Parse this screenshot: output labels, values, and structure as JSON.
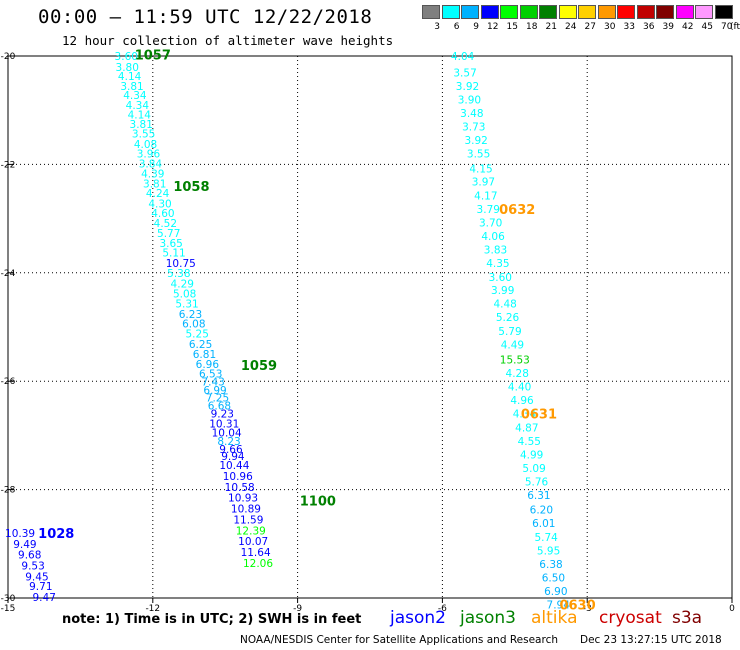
{
  "header": {
    "title": "00:00 – 11:59 UTC 12/22/2018",
    "subtitle": "12 hour collection of altimeter wave heights"
  },
  "scale": {
    "labels": [
      "3",
      "6",
      "9",
      "12",
      "15",
      "18",
      "21",
      "24",
      "27",
      "30",
      "33",
      "36",
      "39",
      "42",
      "45",
      "70"
    ],
    "colors": [
      "#7f7f7f",
      "#00ffff",
      "#00b2ff",
      "#0000ff",
      "#00ff00",
      "#00d000",
      "#008000",
      "#ffff00",
      "#ffd000",
      "#ff9900",
      "#ff0000",
      "#c00000",
      "#800000",
      "#ff00ff",
      "#ff99ff",
      "#000000"
    ],
    "unit": "(ft)"
  },
  "footer": {
    "note": "note:  1) Time is in UTC;  2) SWH is in feet",
    "missions": [
      {
        "name": "jason2",
        "color": "#0000ff"
      },
      {
        "name": "jason3",
        "color": "#008000"
      },
      {
        "name": "altika",
        "color": "#ff9900"
      },
      {
        "name": "cryosat",
        "color": "#cc0000"
      },
      {
        "name": "s3a",
        "color": "#800000"
      }
    ],
    "credit": "NOAA/NESDIS Center for Satellite Applications and Research",
    "timestamp": "Dec 23 13:27:15 UTC 2018"
  },
  "chart_data": {
    "type": "scatter",
    "title": "00:00 – 11:59 UTC 12/22/2018",
    "subtitle": "12 hour collection of altimeter wave heights",
    "xlim": [
      -15,
      0
    ],
    "ylim": [
      -30,
      -20
    ],
    "x_ticks": [
      -15,
      -12,
      -9,
      -6,
      -3,
      0
    ],
    "y_ticks": [
      -20,
      -22,
      -24,
      -26,
      -28,
      -30
    ],
    "grid": true,
    "color_scale": {
      "unit": "ft",
      "thresholds": [
        3,
        6,
        9,
        12,
        15,
        18,
        21,
        24,
        27,
        30,
        33,
        36,
        39,
        42,
        45,
        70
      ],
      "colors": [
        "#7f7f7f",
        "#00ffff",
        "#00b2ff",
        "#0000ff",
        "#00ff00",
        "#00d000",
        "#008000",
        "#ffff00",
        "#ffd000",
        "#ff9900",
        "#ff0000",
        "#c00000",
        "#800000",
        "#ff00ff",
        "#ff99ff",
        "#000000"
      ]
    },
    "series": [
      {
        "name": "jason3",
        "color": "#008000",
        "points": [
          [
            -12.55,
            -20.0,
            "3.60"
          ],
          [
            -12.53,
            -20.2,
            "3.80"
          ],
          [
            -12.48,
            -20.37,
            "4.14"
          ],
          [
            -12.43,
            -20.55,
            "3.81"
          ],
          [
            -12.37,
            -20.72,
            "4.34"
          ],
          [
            -12.32,
            -20.9,
            "4.34"
          ],
          [
            -12.28,
            -21.08,
            "4.14"
          ],
          [
            -12.24,
            -21.25,
            "3.81"
          ],
          [
            -12.19,
            -21.43,
            "3.55"
          ],
          [
            -12.15,
            -21.62,
            "4.08"
          ],
          [
            -12.09,
            -21.8,
            "3.96"
          ],
          [
            -12.05,
            -21.98,
            "3.84"
          ],
          [
            -12.0,
            -22.17,
            "4.39"
          ],
          [
            -11.96,
            -22.35,
            "3.81"
          ],
          [
            -11.9,
            -22.53,
            "4.24"
          ],
          [
            -11.85,
            -22.72,
            "4.30"
          ],
          [
            -11.79,
            -22.9,
            "4.60"
          ],
          [
            -11.74,
            -23.08,
            "4.52"
          ],
          [
            -11.67,
            -23.27,
            "5.77"
          ],
          [
            -11.62,
            -23.45,
            "3.65"
          ],
          [
            -11.56,
            -23.63,
            "5.11"
          ],
          [
            -11.42,
            -23.82,
            "10.75"
          ],
          [
            -11.46,
            -24.0,
            "5.38"
          ],
          [
            -11.39,
            -24.2,
            "4.29"
          ],
          [
            -11.34,
            -24.38,
            "5.08"
          ],
          [
            -11.29,
            -24.57,
            "5.31"
          ],
          [
            -11.22,
            -24.76,
            "6.23"
          ],
          [
            -11.15,
            -24.94,
            "6.08"
          ],
          [
            -11.08,
            -25.12,
            "5.25"
          ],
          [
            -11.01,
            -25.31,
            "6.25"
          ],
          [
            -10.93,
            -25.5,
            "6.81"
          ],
          [
            -10.87,
            -25.68,
            "6.96"
          ],
          [
            -10.8,
            -25.86,
            "6.53"
          ],
          [
            -10.75,
            -26.01,
            "7.43"
          ],
          [
            -10.71,
            -26.16,
            "6.99"
          ],
          [
            -10.66,
            -26.3,
            "7.25"
          ],
          [
            -10.62,
            -26.45,
            "6.68"
          ],
          [
            -10.56,
            -26.6,
            "9.23"
          ],
          [
            -10.52,
            -26.78,
            "10.31"
          ],
          [
            -10.47,
            -26.95,
            "10.04"
          ],
          [
            -10.42,
            -27.1,
            "8.23"
          ],
          [
            -10.38,
            -27.25,
            "9.66"
          ],
          [
            -10.34,
            -27.38,
            "9.94"
          ],
          [
            -10.31,
            -27.55,
            "10.44"
          ],
          [
            -10.24,
            -27.75,
            "10.96"
          ],
          [
            -10.2,
            -27.95,
            "10.58"
          ],
          [
            -10.13,
            -28.15,
            "10.93"
          ],
          [
            -10.07,
            -28.35,
            "10.89"
          ],
          [
            -10.02,
            -28.55,
            "11.59"
          ],
          [
            -9.97,
            -28.75,
            "12.39"
          ],
          [
            -9.92,
            -28.95,
            "10.07"
          ],
          [
            -9.87,
            -29.15,
            "11.64"
          ],
          [
            -9.82,
            -29.35,
            "12.06"
          ]
        ],
        "pass_labels": [
          [
            -12.0,
            -19.97,
            "1057"
          ],
          [
            -11.2,
            -22.4,
            "1058"
          ],
          [
            -9.8,
            -25.7,
            "1059"
          ],
          [
            -8.58,
            -28.2,
            "1100"
          ]
        ]
      },
      {
        "name": "jason2",
        "color": "#0000ff",
        "points": [
          [
            -14.75,
            -28.8,
            "10.39"
          ],
          [
            -14.65,
            -29.0,
            "9.49"
          ],
          [
            -14.55,
            -29.2,
            "9.68"
          ],
          [
            -14.48,
            -29.4,
            "9.53"
          ],
          [
            -14.4,
            -29.6,
            "9.45"
          ],
          [
            -14.32,
            -29.78,
            "9.71"
          ],
          [
            -14.25,
            -29.98,
            "9.47"
          ]
        ],
        "pass_labels": [
          [
            -14.0,
            -28.8,
            "1028"
          ]
        ]
      },
      {
        "name": "altika",
        "color": "#ff9900",
        "points": [
          [
            -5.58,
            -20.0,
            "4.04"
          ],
          [
            -5.53,
            -20.3,
            "3.57"
          ],
          [
            -5.48,
            -20.55,
            "3.92"
          ],
          [
            -5.44,
            -20.8,
            "3.90"
          ],
          [
            -5.39,
            -21.05,
            "3.48"
          ],
          [
            -5.35,
            -21.3,
            "3.73"
          ],
          [
            -5.3,
            -21.55,
            "3.92"
          ],
          [
            -5.25,
            -21.8,
            "3.55"
          ],
          [
            -5.2,
            -22.08,
            "4.15"
          ],
          [
            -5.15,
            -22.32,
            "3.97"
          ],
          [
            -5.1,
            -22.57,
            "4.17"
          ],
          [
            -5.05,
            -22.82,
            "3.79"
          ],
          [
            -5.0,
            -23.07,
            "3.70"
          ],
          [
            -4.95,
            -23.32,
            "4.06"
          ],
          [
            -4.9,
            -23.57,
            "3.83"
          ],
          [
            -4.85,
            -23.82,
            "4.35"
          ],
          [
            -4.8,
            -24.08,
            "3.60"
          ],
          [
            -4.75,
            -24.32,
            "3.99"
          ],
          [
            -4.7,
            -24.57,
            "4.48"
          ],
          [
            -4.65,
            -24.82,
            "5.26"
          ],
          [
            -4.6,
            -25.07,
            "5.79"
          ],
          [
            -4.55,
            -25.32,
            "4.49"
          ],
          [
            -4.5,
            -25.6,
            "15.53"
          ],
          [
            -4.45,
            -25.85,
            "4.28"
          ],
          [
            -4.4,
            -26.1,
            "4.40"
          ],
          [
            -4.35,
            -26.35,
            "4.96"
          ],
          [
            -4.3,
            -26.6,
            "4.34"
          ],
          [
            -4.25,
            -26.85,
            "4.87"
          ],
          [
            -4.2,
            -27.1,
            "4.55"
          ],
          [
            -4.15,
            -27.35,
            "4.99"
          ],
          [
            -4.1,
            -27.6,
            "5.09"
          ],
          [
            -4.05,
            -27.85,
            "5.76"
          ],
          [
            -4.0,
            -28.1,
            "6.31"
          ],
          [
            -3.95,
            -28.37,
            "6.20"
          ],
          [
            -3.9,
            -28.62,
            "6.01"
          ],
          [
            -3.85,
            -28.87,
            "5.74"
          ],
          [
            -3.8,
            -29.12,
            "5.95"
          ],
          [
            -3.75,
            -29.37,
            "6.38"
          ],
          [
            -3.7,
            -29.62,
            "6.50"
          ],
          [
            -3.65,
            -29.87,
            "6.90"
          ],
          [
            -3.6,
            -30.12,
            "7.94"
          ]
        ],
        "pass_labels": [
          [
            -4.45,
            -22.82,
            "0632"
          ],
          [
            -4.0,
            -26.6,
            "0631"
          ],
          [
            -3.2,
            -30.12,
            "0630"
          ]
        ]
      }
    ]
  }
}
